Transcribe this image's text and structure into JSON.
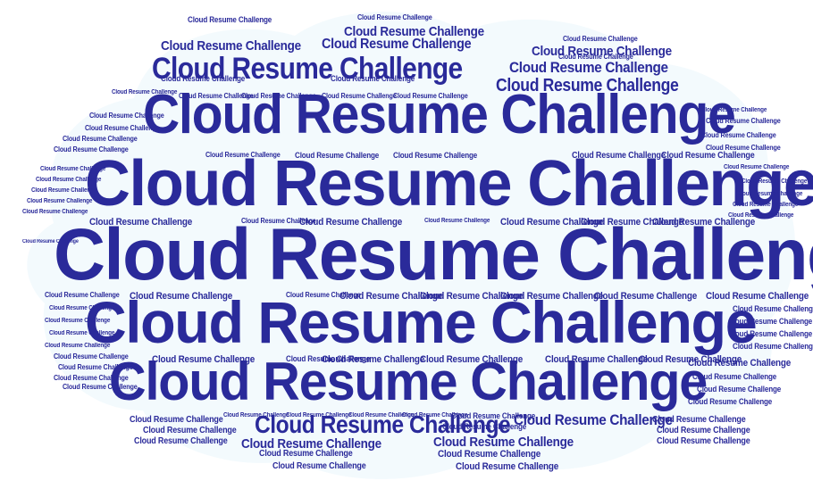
{
  "word": "Cloud Resume Challenge",
  "colors": {
    "text": "#2a2a9a",
    "cloud_fill": "#f3fafd",
    "background": "#ffffff"
  }
}
